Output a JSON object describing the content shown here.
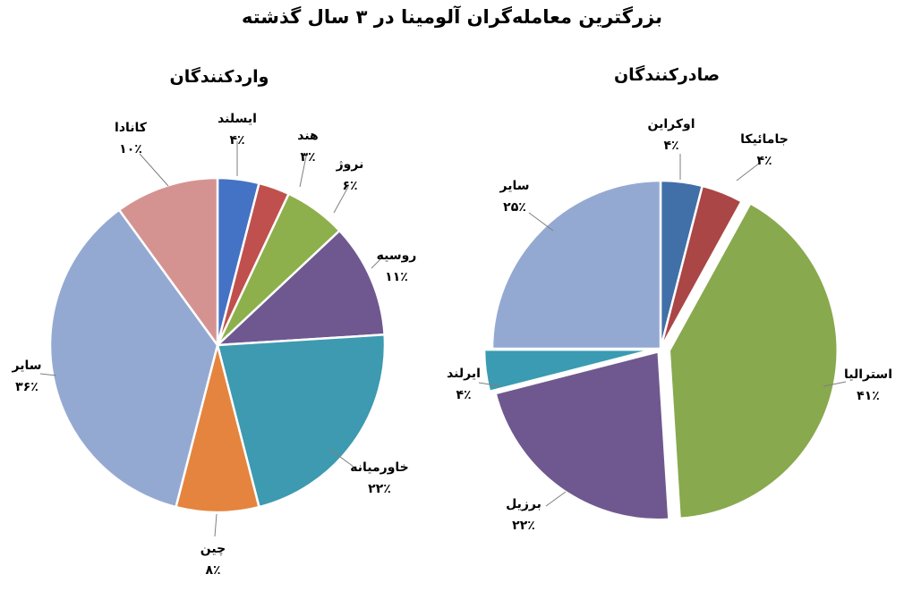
{
  "chart_data": {
    "type": "pie",
    "title": "بزرگترین معامله‌گران آلومینا در ۳ سال گذشته",
    "charts": [
      {
        "title": "واردکنندگان",
        "slices": [
          {
            "label": "ایسلند",
            "value": 4,
            "value_label": "۴٪",
            "color": "#4472c4"
          },
          {
            "label": "هند",
            "value": 3,
            "value_label": "۳٪",
            "color": "#c0504d"
          },
          {
            "label": "نروژ",
            "value": 6,
            "value_label": "۶٪",
            "color": "#8db04c"
          },
          {
            "label": "روسیه",
            "value": 11,
            "value_label": "۱۱٪",
            "color": "#6f588f"
          },
          {
            "label": "خاورمیانه",
            "value": 22,
            "value_label": "۲۲٪",
            "color": "#3d9ab0"
          },
          {
            "label": "چین",
            "value": 8,
            "value_label": "۸٪",
            "color": "#e5843e"
          },
          {
            "label": "سایر",
            "value": 36,
            "value_label": "۳۶٪",
            "color": "#94a9d2"
          },
          {
            "label": "کانادا",
            "value": 10,
            "value_label": "۱۰٪",
            "color": "#d49391"
          }
        ]
      },
      {
        "title": "صادرکنندگان",
        "slices": [
          {
            "label": "اوکراین",
            "value": 4,
            "value_label": "۴٪",
            "color": "#416fa8"
          },
          {
            "label": "جامائیکا",
            "value": 4,
            "value_label": "۴٪",
            "color": "#aa4646"
          },
          {
            "label": "استرالیا",
            "value": 41,
            "value_label": "۴۱٪",
            "color": "#88a94e"
          },
          {
            "label": "برزیل",
            "value": 22,
            "value_label": "۲۲٪",
            "color": "#6f588f"
          },
          {
            "label": "ایرلند",
            "value": 4,
            "value_label": "۴٪",
            "color": "#3a9bb2"
          },
          {
            "label": "سایر",
            "value": 25,
            "value_label": "۲۵٪",
            "color": "#94a9d2"
          }
        ]
      }
    ]
  }
}
